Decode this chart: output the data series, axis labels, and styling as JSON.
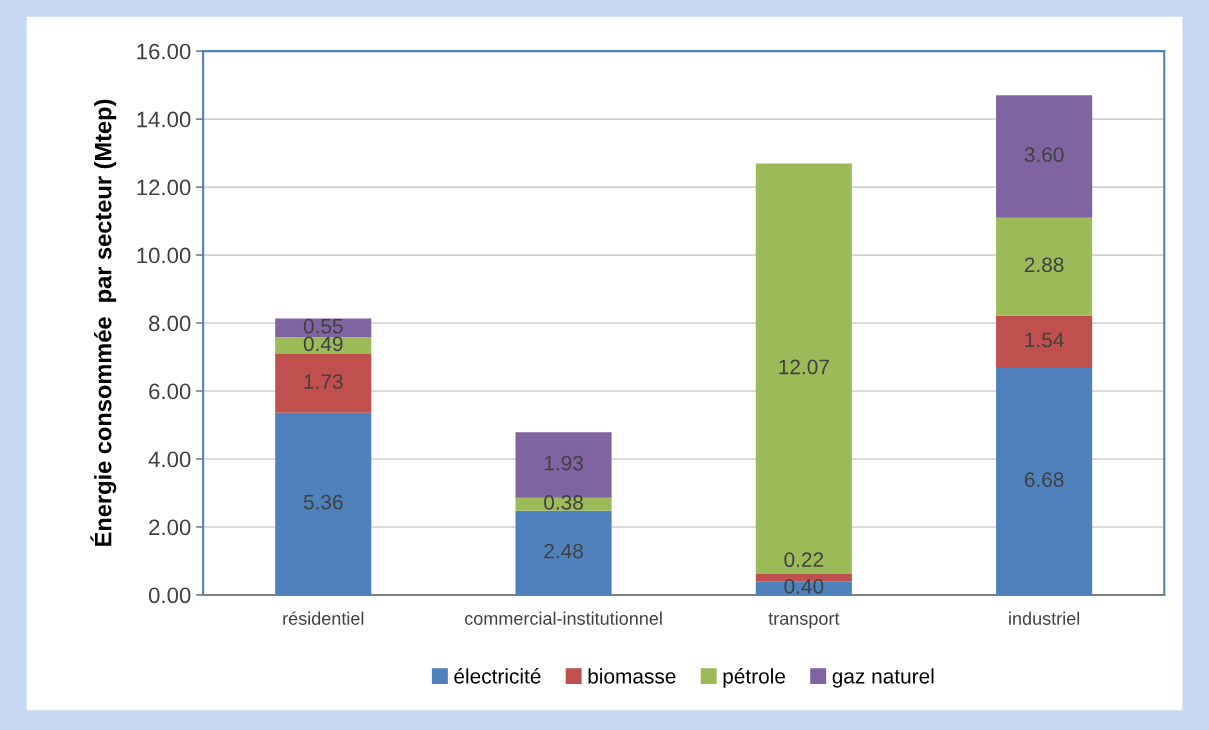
{
  "chart_data": {
    "type": "bar",
    "stacked": true,
    "ylabel": "Énergie consommée  par secteur (Mtep)",
    "categories": [
      "résidentiel",
      "commercial-institutionnel",
      "transport",
      "industriel"
    ],
    "series": [
      {
        "name": "électricité",
        "color": "#4f81bd",
        "values": [
          5.36,
          2.48,
          0.4,
          6.68
        ],
        "value_labels": [
          "5.36",
          "2.48",
          "0.40",
          "6.68"
        ]
      },
      {
        "name": "biomasse",
        "color": "#c0504d",
        "values": [
          1.73,
          null,
          0.22,
          1.54
        ],
        "value_labels": [
          "1.73",
          null,
          "0.22",
          "1.54"
        ]
      },
      {
        "name": "pétrole",
        "color": "#9bbb59",
        "values": [
          0.49,
          0.38,
          12.07,
          2.88
        ],
        "value_labels": [
          "0.49",
          "0.38",
          "12.07",
          "2.88"
        ]
      },
      {
        "name": "gaz naturel",
        "color": "#8064a2",
        "values": [
          0.55,
          1.93,
          null,
          3.6
        ],
        "value_labels": [
          "0.55",
          "1.93",
          null,
          "3.60"
        ]
      }
    ],
    "ylim": [
      0,
      16
    ],
    "yticks": [
      {
        "value": 0,
        "label": "0.00"
      },
      {
        "value": 2,
        "label": "2.00"
      },
      {
        "value": 4,
        "label": "4.00"
      },
      {
        "value": 6,
        "label": "6.00"
      },
      {
        "value": 8,
        "label": "8.00"
      },
      {
        "value": 10,
        "label": "10.00"
      },
      {
        "value": 12,
        "label": "12.00"
      },
      {
        "value": 14,
        "label": "14.00"
      },
      {
        "value": 16,
        "label": "16.00"
      }
    ],
    "grid": "y",
    "legend": "bottom"
  }
}
